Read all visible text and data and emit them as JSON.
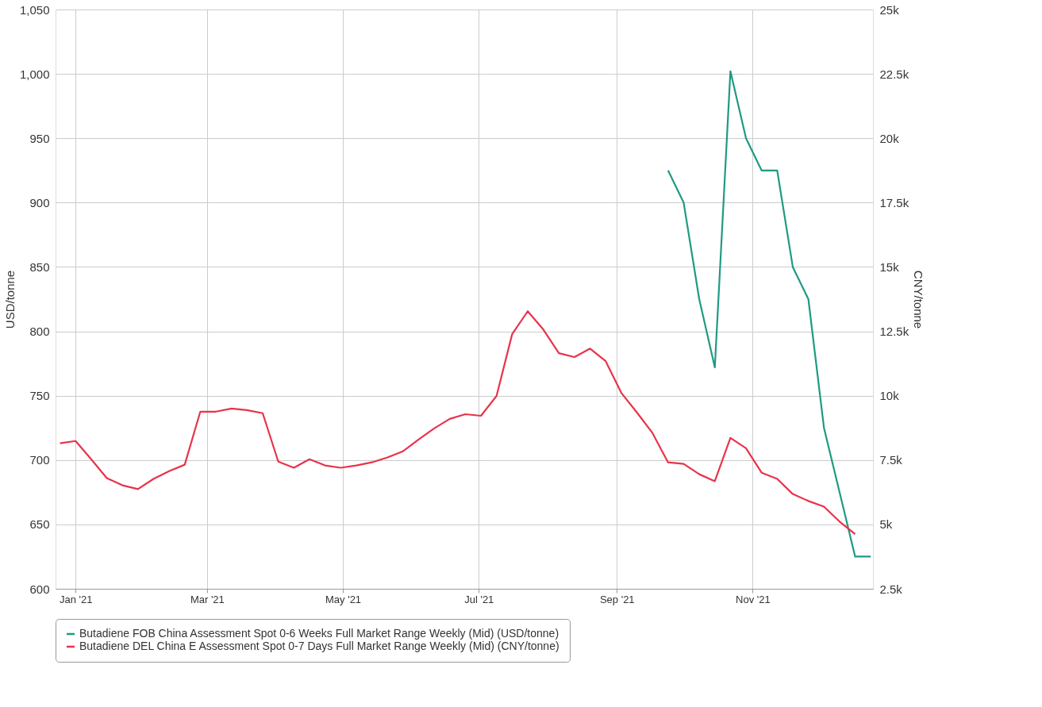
{
  "chart_data": {
    "type": "line",
    "ylabel": "USD/tonne",
    "y2label": "CNY/tonne",
    "xlim": [
      "2020-12-23",
      "2021-12-25"
    ],
    "xticks": [
      {
        "value": "2021-01-01",
        "label": "Jan '21"
      },
      {
        "value": "2021-03-01",
        "label": "Mar '21"
      },
      {
        "value": "2021-05-01",
        "label": "May '21"
      },
      {
        "value": "2021-07-01",
        "label": "Jul '21"
      },
      {
        "value": "2021-09-01",
        "label": "Sep '21"
      },
      {
        "value": "2021-11-01",
        "label": "Nov '21"
      }
    ],
    "ylim": [
      600,
      1050
    ],
    "yticks": [
      600,
      650,
      700,
      750,
      800,
      850,
      900,
      950,
      {
        "value": 1000,
        "label": "1,000"
      },
      {
        "value": 1050,
        "label": "1,050"
      }
    ],
    "y2lim": [
      2500,
      25000
    ],
    "y2ticks": [
      {
        "value": 2500,
        "label": "2.5k"
      },
      {
        "value": 5000,
        "label": "5k"
      },
      {
        "value": 7500,
        "label": "7.5k"
      },
      {
        "value": 10000,
        "label": "10k"
      },
      {
        "value": 12500,
        "label": "12.5k"
      },
      {
        "value": 15000,
        "label": "15k"
      },
      {
        "value": 17500,
        "label": "17.5k"
      },
      {
        "value": 20000,
        "label": "20k"
      },
      {
        "value": 22500,
        "label": "22.5k"
      },
      {
        "value": 25000,
        "label": "25k"
      }
    ],
    "grid": true,
    "legend": "bottom",
    "marker": "none",
    "line_style": "solid",
    "series": [
      {
        "name": "Butadiene FOB China Assessment Spot 0-6 Weeks Full Market Range Weekly (Mid) (USD/tonne)",
        "color": "#1f9a84",
        "axis": "y",
        "x": [
          "2021-09-24",
          "2021-10-01",
          "2021-10-08",
          "2021-10-15",
          "2021-10-22",
          "2021-10-29",
          "2021-11-05",
          "2021-11-12",
          "2021-11-19",
          "2021-11-26",
          "2021-12-03",
          "2021-12-10",
          "2021-12-17",
          "2021-12-24"
        ],
        "values": [
          925,
          900,
          825,
          772,
          1002,
          950,
          925,
          925,
          850,
          825,
          725,
          675,
          625,
          625
        ]
      },
      {
        "name": "Butadiene DEL China E Assessment Spot 0-7 Days Full Market Range Weekly (Mid) (CNY/tonne)",
        "color": "#e8334a",
        "axis": "y2",
        "x": [
          "2020-12-25",
          "2021-01-01",
          "2021-01-08",
          "2021-01-15",
          "2021-01-22",
          "2021-01-29",
          "2021-02-05",
          "2021-02-12",
          "2021-02-19",
          "2021-02-26",
          "2021-03-05",
          "2021-03-12",
          "2021-03-19",
          "2021-03-26",
          "2021-04-02",
          "2021-04-09",
          "2021-04-16",
          "2021-04-23",
          "2021-04-30",
          "2021-05-07",
          "2021-05-14",
          "2021-05-21",
          "2021-05-28",
          "2021-06-04",
          "2021-06-11",
          "2021-06-18",
          "2021-06-25",
          "2021-07-02",
          "2021-07-09",
          "2021-07-16",
          "2021-07-23",
          "2021-07-30",
          "2021-08-06",
          "2021-08-13",
          "2021-08-20",
          "2021-08-27",
          "2021-09-03",
          "2021-09-10",
          "2021-09-17",
          "2021-09-24",
          "2021-10-01",
          "2021-10-08",
          "2021-10-15",
          "2021-10-22",
          "2021-10-29",
          "2021-11-05",
          "2021-11-12",
          "2021-11-19",
          "2021-11-26",
          "2021-12-03",
          "2021-12-10",
          "2021-12-17"
        ],
        "values": [
          8150,
          8240,
          7530,
          6800,
          6520,
          6370,
          6770,
          7070,
          7320,
          9380,
          9380,
          9500,
          9440,
          9320,
          7440,
          7200,
          7530,
          7290,
          7200,
          7290,
          7410,
          7600,
          7840,
          8300,
          8730,
          9100,
          9280,
          9220,
          9990,
          12390,
          13280,
          12570,
          11650,
          11500,
          11830,
          11340,
          10110,
          9350,
          8550,
          7410,
          7350,
          6950,
          6680,
          8360,
          7960,
          7010,
          6770,
          6180,
          5910,
          5690,
          5110,
          4620
        ]
      }
    ]
  }
}
